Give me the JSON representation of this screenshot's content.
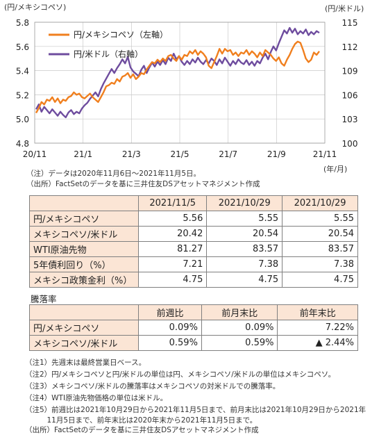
{
  "chart_data": {
    "type": "line",
    "y_left_label": "(円/メキシコペソ)",
    "y_right_label": "(円/米ドル)",
    "x_unit_label": "(年/月)",
    "y_left_lim": [
      4.8,
      5.8
    ],
    "y_left_ticks": [
      "4.8",
      "5.0",
      "5.2",
      "5.4",
      "5.6",
      "5.8"
    ],
    "y_right_lim": [
      100,
      115
    ],
    "y_right_ticks": [
      "100",
      "103",
      "106",
      "109",
      "112",
      "115"
    ],
    "x_ticks": [
      "20/11",
      "21/1",
      "21/3",
      "21/5",
      "21/7",
      "21/9",
      "21/11"
    ],
    "grid": true,
    "legend_position": "top-left",
    "series": [
      {
        "name": "円/メキシコペソ（左軸）",
        "axis": "left",
        "color": "#f07f1e",
        "values": [
          5.05,
          5.09,
          5.14,
          5.12,
          5.16,
          5.15,
          5.18,
          5.14,
          5.17,
          5.13,
          5.16,
          5.15,
          5.18,
          5.19,
          5.22,
          5.2,
          5.21,
          5.18,
          5.17,
          5.19,
          5.21,
          5.18,
          5.16,
          5.14,
          5.18,
          5.22,
          5.27,
          5.28,
          5.3,
          5.29,
          5.33,
          5.31,
          5.35,
          5.36,
          5.38,
          5.34,
          5.37,
          5.33,
          5.35,
          5.38,
          5.37,
          5.41,
          5.44,
          5.47,
          5.46,
          5.49,
          5.47,
          5.5,
          5.48,
          5.52,
          5.53,
          5.5,
          5.48,
          5.52,
          5.49,
          5.53,
          5.52,
          5.56,
          5.54,
          5.57,
          5.53,
          5.56,
          5.54,
          5.51,
          5.44,
          5.42,
          5.47,
          5.52,
          5.58,
          5.54,
          5.58,
          5.56,
          5.57,
          5.53,
          5.55,
          5.52,
          5.55,
          5.54,
          5.57,
          5.53,
          5.56,
          5.54,
          5.51,
          5.55,
          5.52,
          5.57,
          5.55,
          5.53,
          5.5,
          5.48,
          5.51,
          5.46,
          5.44,
          5.49,
          5.53,
          5.58,
          5.62,
          5.64,
          5.63,
          5.57,
          5.5,
          5.47,
          5.49,
          5.55,
          5.53,
          5.56
        ]
      },
      {
        "name": "円/米ドル（右軸）",
        "axis": "right",
        "color": "#6e4c9e",
        "values": [
          104.2,
          104.8,
          103.9,
          104.5,
          104.1,
          103.7,
          104.2,
          103.8,
          103.4,
          103.9,
          103.5,
          103.2,
          103.8,
          104.1,
          103.6,
          103.9,
          103.7,
          104.3,
          104.7,
          105.0,
          105.5,
          105.9,
          106.3,
          105.8,
          106.7,
          107.4,
          108.0,
          108.6,
          109.2,
          108.7,
          109.3,
          109.8,
          110.4,
          109.9,
          110.7,
          109.4,
          108.9,
          108.6,
          108.3,
          109.1,
          109.6,
          108.7,
          109.4,
          110.0,
          109.5,
          110.1,
          109.7,
          110.3,
          109.8,
          110.6,
          110.2,
          111.1,
          110.4,
          110.8,
          110.1,
          109.7,
          110.2,
          109.8,
          110.4,
          110.0,
          110.6,
          110.1,
          109.8,
          110.3,
          109.9,
          110.5,
          110.2,
          109.7,
          110.4,
          109.9,
          110.6,
          110.1,
          109.6,
          110.2,
          109.8,
          110.4,
          110.0,
          109.8,
          110.3,
          109.7,
          110.1,
          109.6,
          110.2,
          109.9,
          110.6,
          111.1,
          110.4,
          111.3,
          112.0,
          111.5,
          112.4,
          113.2,
          114.0,
          113.6,
          114.3,
          113.7,
          114.2,
          113.5,
          113.9,
          113.6,
          114.1,
          113.4,
          113.8,
          113.5,
          113.9,
          113.7
        ]
      }
    ]
  },
  "notes_chart": {
    "line1": "（注）データは2020年11月6日～2021年11月5日。",
    "line2": "（出所）FactSetのデータを基に三井住友DSアセットマネジメント作成"
  },
  "table1": {
    "headers": [
      "2021/11/5",
      "2021/10/29",
      "2021/10/29"
    ],
    "rows": [
      {
        "label": "円/メキシコペソ",
        "values": [
          "5.56",
          "5.55",
          "5.55"
        ]
      },
      {
        "label": "メキシコペソ/米ドル",
        "values": [
          "20.42",
          "20.54",
          "20.54"
        ]
      },
      {
        "label": "WTI原油先物",
        "values": [
          "81.27",
          "83.57",
          "83.57"
        ]
      },
      {
        "label": "5年債利回り（%）",
        "values": [
          "7.21",
          "7.38",
          "7.38"
        ]
      },
      {
        "label": "メキシコ政策金利（%）",
        "values": [
          "4.75",
          "4.75",
          "4.75"
        ]
      }
    ]
  },
  "section_label": "騰落率",
  "table2": {
    "headers": [
      "前週比",
      "前月末比",
      "前年末比"
    ],
    "rows": [
      {
        "label": "円/メキシコペソ",
        "values": [
          "0.09%",
          "0.09%",
          "7.22%"
        ]
      },
      {
        "label": "メキシコペソ/米ドル",
        "values": [
          "0.59%",
          "0.59%",
          "▲ 2.44%"
        ]
      }
    ]
  },
  "footnotes": [
    "（注1）先週末は最終営業日ベース。",
    "（注2）円/メキシコペソと円/米ドルの単位は円、メキシコペソ/米ドルの単位はメキシコペソ。",
    "（注3）メキシコペソ/米ドルの騰落率はメキシコペソの対米ドルでの騰落率。",
    "（注4）WTI原油先物価格の単位は米ドル。",
    "（注5）前週比は2021年10月29日から2021年11月5日まで、前月末比は2021年10月29日から2021年",
    "　　　11月5日まで、前年末比は2020年末から2021年11月5日まで。",
    "（出所）FactSetのデータを基に三井住友DSアセットマネジメント作成"
  ]
}
